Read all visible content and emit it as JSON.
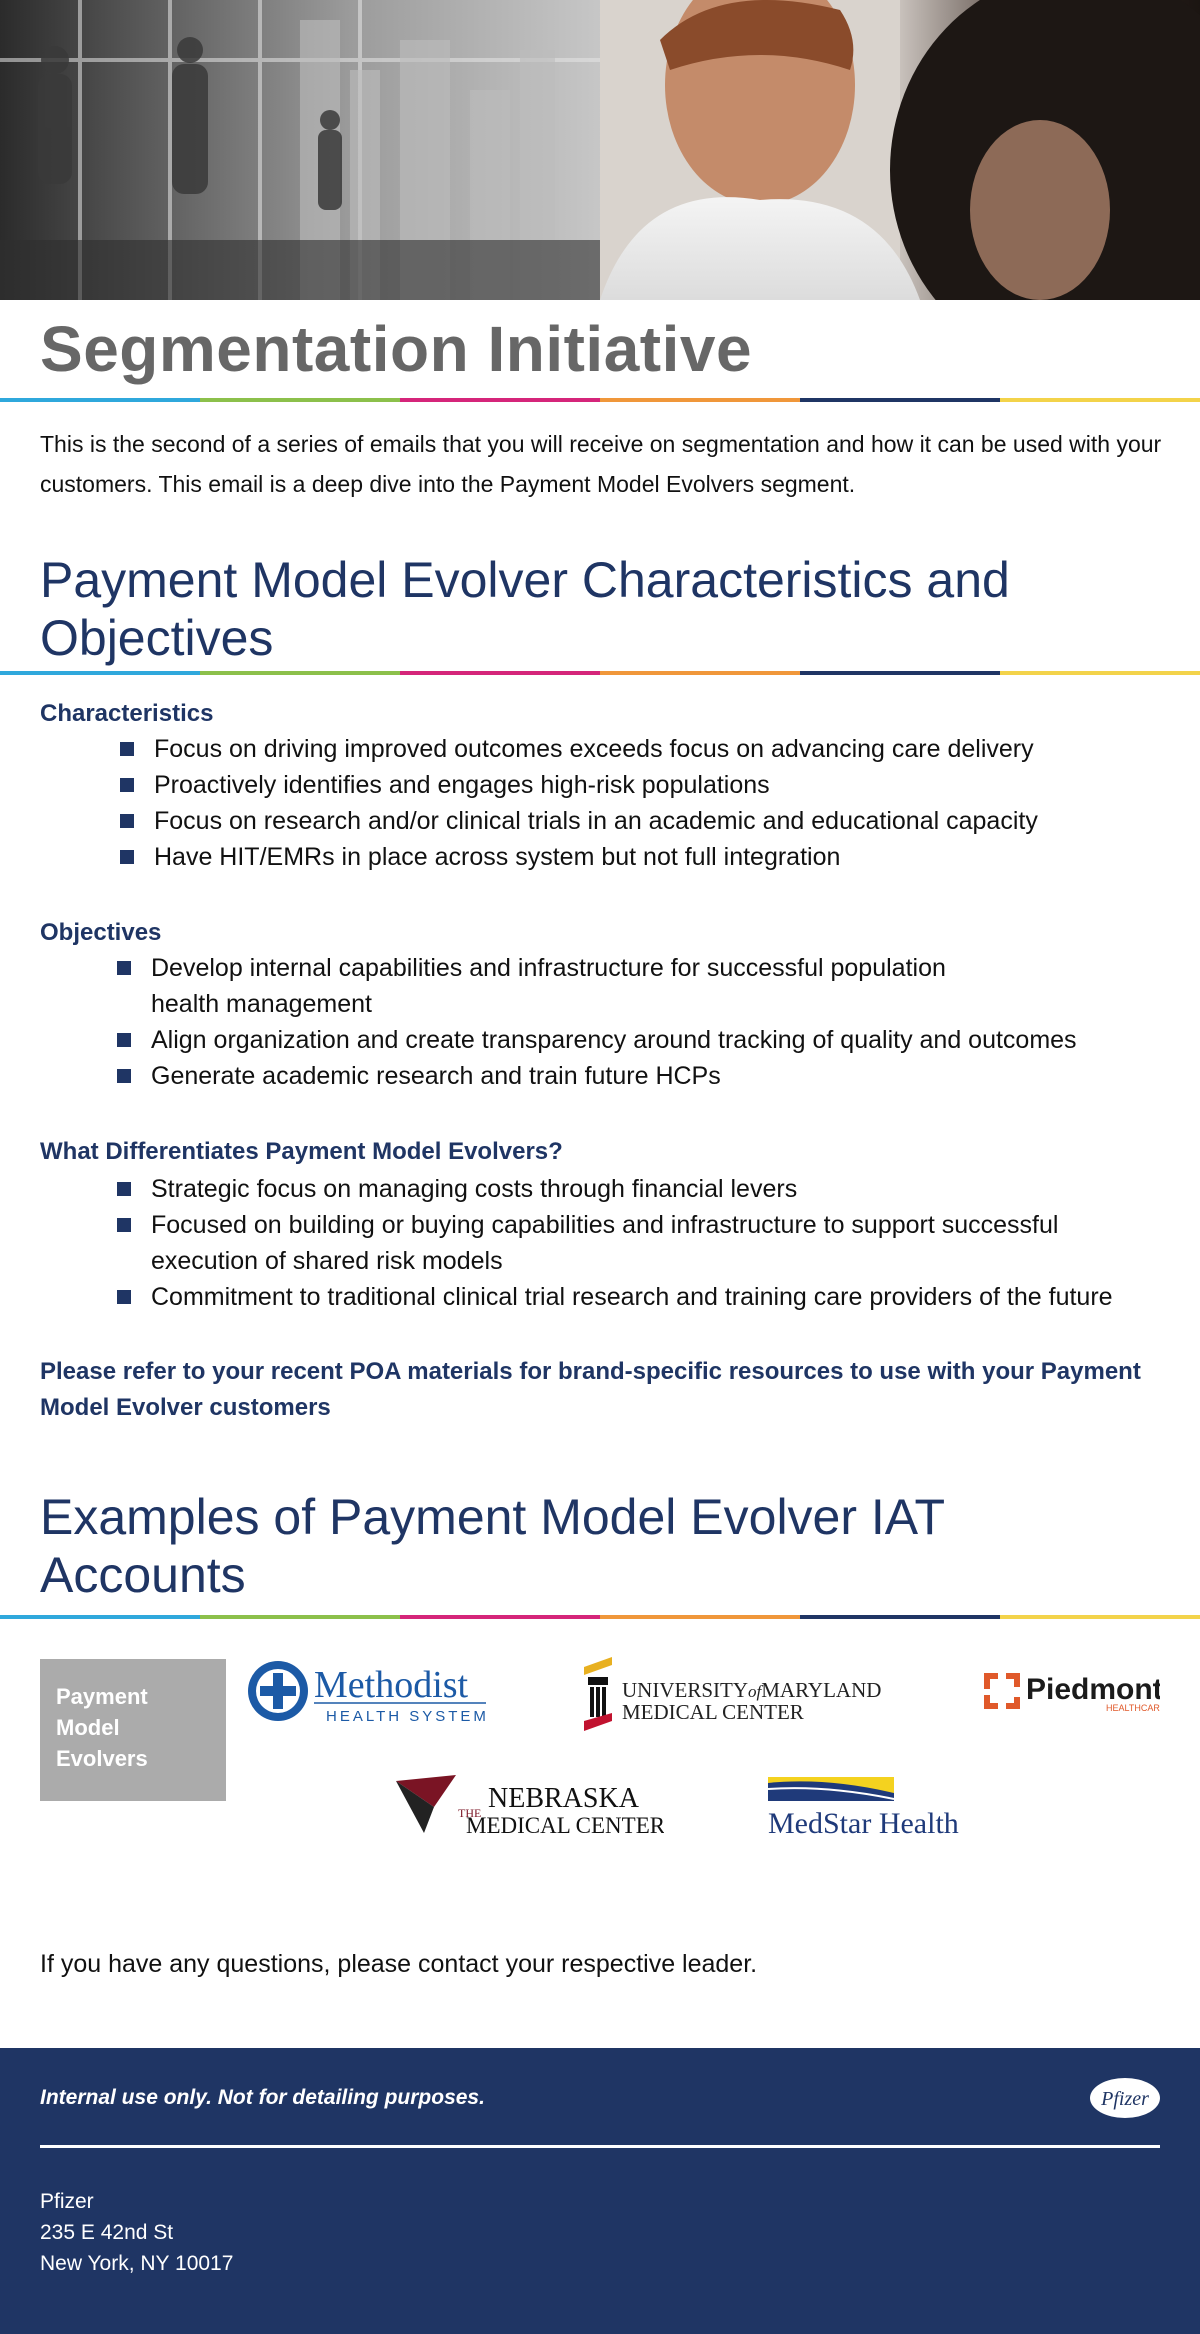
{
  "hero": {
    "description_icon": "hero-photo"
  },
  "title": "Segmentation Initiative",
  "intro": "This is the second of a series of emails that you will receive on segmentation and how it can be used with your customers. This email is a deep dive into the Payment Model Evolvers segment.",
  "section1": {
    "heading": "Payment Model Evolver Characteristics and Objectives",
    "characteristics": {
      "heading": "Characteristics",
      "items": [
        "Focus on driving improved outcomes exceeds focus on advancing care delivery",
        "Proactively identifies and engages high-risk populations",
        "Focus on research and/or clinical trials in an academic and educational capacity",
        "Have HIT/EMRs in place across system but not full integration"
      ]
    },
    "objectives": {
      "heading": "Objectives",
      "items": [
        "Develop internal capabilities and infrastructure for successful population health management",
        "Align organization and create transparency around tracking of quality and outcomes",
        "Generate academic research and train future HCPs"
      ]
    },
    "differentiates": {
      "heading": "What Differentiates Payment Model Evolvers?",
      "items": [
        "Strategic focus on managing costs through financial levers",
        "Focused on building or buying capabilities and infrastructure to support successful execution of shared risk models",
        "Commitment to traditional clinical trial research and training care providers of the future"
      ]
    },
    "callout": "Please refer to your recent POA materials for brand-specific resources to use with your Payment Model Evolver customers"
  },
  "section2": {
    "heading": "Examples of Payment Model Evolver IAT Accounts",
    "badge": [
      "Payment",
      "Model",
      "Evolvers"
    ],
    "logos": {
      "methodist": {
        "name": "Methodist",
        "sub": "HEALTH SYSTEM"
      },
      "umaryland": {
        "line1": "UNIVERSITY",
        "of": "of",
        "line1b": "MARYLAND",
        "line2": "MEDICAL CENTER"
      },
      "piedmont": {
        "name": "Piedmont",
        "sub": "HEALTHCARE"
      },
      "nebraska": {
        "the": "THE",
        "line1": "NEBRASKA",
        "line2": "MEDICAL CENTER"
      },
      "medstar": {
        "name": "MedStar Health"
      }
    }
  },
  "closing": "If you have any questions, please contact your respective leader.",
  "footer": {
    "note": "Internal use only. Not for detailing purposes.",
    "logo": "Pfizer",
    "address": [
      "Pfizer",
      "235 E 42nd St",
      "New York, NY 10017"
    ]
  },
  "colors": {
    "navy": "#1f3564",
    "title_gray": "#676767",
    "rule": [
      "#2fa8dc",
      "#8cc04b",
      "#d5257a",
      "#f0973a",
      "#1f3564",
      "#f3d34a"
    ]
  }
}
